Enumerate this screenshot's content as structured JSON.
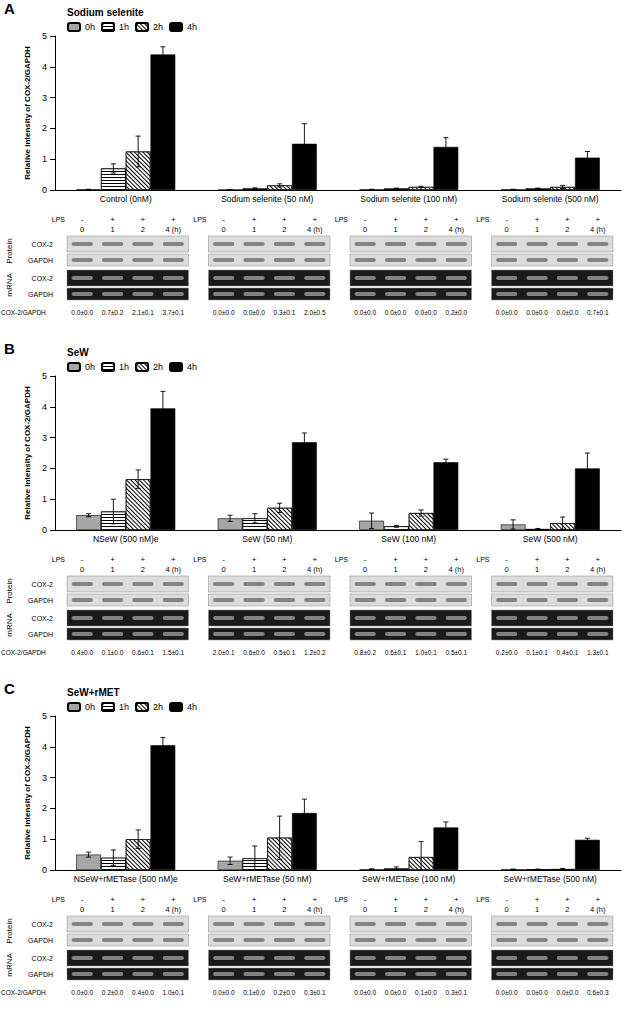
{
  "chart_data": [
    {
      "type": "bar",
      "title": "Sodium selenite",
      "annotations": [
        "A"
      ],
      "y_label": "Relative intensity of COX-2/GAPDH",
      "categories": [
        "Control (0nM)",
        "Sodium selenite (50 nM)",
        "Sodium selenite (100 nM)",
        "Sodium selenite (500 nM)"
      ],
      "series": [
        {
          "name": "0h",
          "color": "#a6a6a6",
          "values": [
            0.02,
            0.01,
            0.02,
            0.02
          ],
          "errors": [
            0,
            0,
            0,
            0
          ]
        },
        {
          "name": "1h",
          "color": "#ffffff",
          "values": [
            0.7,
            0.05,
            0.05,
            0.05
          ],
          "errors": [
            0.15,
            0.02,
            0.01,
            0.01
          ]
        },
        {
          "name": "2h",
          "color": "#ffffff",
          "values": [
            1.25,
            0.15,
            0.1,
            0.1
          ],
          "errors": [
            0.5,
            0.05,
            0.02,
            0.05
          ]
        },
        {
          "name": "4h",
          "color": "#000000",
          "values": [
            4.4,
            1.5,
            1.4,
            1.05
          ],
          "errors": [
            0.25,
            0.65,
            0.3,
            0.2
          ]
        }
      ],
      "ylim": [
        0,
        5
      ],
      "yticks": [
        0,
        1,
        2,
        3,
        4,
        5
      ],
      "grid": false,
      "legend": "top-left"
    },
    {
      "type": "bar",
      "title": "SeW",
      "annotations": [
        "B"
      ],
      "y_label": "Relative intensity of COX-2/GAPDH",
      "categories": [
        "NSeW (500 nM)e",
        "SeW (50 nM)",
        "SeW (100 nM)",
        "SeW (500 nM)"
      ],
      "series": [
        {
          "name": "0h",
          "color": "#a6a6a6",
          "values": [
            0.48,
            0.38,
            0.3,
            0.18
          ],
          "errors": [
            0.05,
            0.1,
            0.25,
            0.15
          ]
        },
        {
          "name": "1h",
          "color": "#ffffff",
          "values": [
            0.6,
            0.38,
            0.12,
            0.03
          ],
          "errors": [
            0.4,
            0.15,
            0.03,
            0.02
          ]
        },
        {
          "name": "2h",
          "color": "#ffffff",
          "values": [
            1.65,
            0.72,
            0.55,
            0.22
          ],
          "errors": [
            0.3,
            0.15,
            0.1,
            0.2
          ]
        },
        {
          "name": "4h",
          "color": "#000000",
          "values": [
            3.95,
            2.85,
            2.2,
            2.0
          ],
          "errors": [
            0.55,
            0.3,
            0.1,
            0.5
          ]
        }
      ],
      "ylim": [
        0,
        5
      ],
      "yticks": [
        0,
        1,
        2,
        3,
        4,
        5
      ],
      "grid": false,
      "legend": "top-left"
    },
    {
      "type": "bar",
      "title": "SeW+rMET",
      "annotations": [
        "C"
      ],
      "y_label": "Relative intensity of COX-2/GAPDH",
      "categories": [
        "NSeW+rMETase (500 nM)e",
        "SeW+rMETase (50 nM)",
        "SeW+rMETase (100 nM)",
        "SeW+rMETase (500 nM)"
      ],
      "series": [
        {
          "name": "0h",
          "color": "#a6a6a6",
          "values": [
            0.5,
            0.3,
            0.02,
            0.02
          ],
          "errors": [
            0.08,
            0.12,
            0.02,
            0.01
          ]
        },
        {
          "name": "1h",
          "color": "#ffffff",
          "values": [
            0.4,
            0.38,
            0.05,
            0.02
          ],
          "errors": [
            0.25,
            0.4,
            0.05,
            0.01
          ]
        },
        {
          "name": "2h",
          "color": "#ffffff",
          "values": [
            1.0,
            1.05,
            0.42,
            0.03
          ],
          "errors": [
            0.3,
            0.7,
            0.5,
            0.02
          ]
        },
        {
          "name": "4h",
          "color": "#000000",
          "values": [
            4.05,
            1.85,
            1.38,
            0.98
          ],
          "errors": [
            0.25,
            0.45,
            0.18,
            0.05
          ]
        }
      ],
      "ylim": [
        0,
        5
      ],
      "yticks": [
        0,
        1,
        2,
        3,
        4,
        5
      ],
      "grid": false,
      "legend": "top-left"
    }
  ],
  "blot_panels": [
    {
      "lps_label": "LPS",
      "lps": [
        "-",
        "+",
        "+",
        "+"
      ],
      "lanes": [
        "0",
        "1",
        "2",
        "4 (h)"
      ],
      "sections": [
        {
          "label": "Protein",
          "rows": [
            "COX-2",
            "GAPDH"
          ]
        },
        {
          "label": "mRNA",
          "rows": [
            "COX-2",
            "GAPDH"
          ]
        }
      ],
      "ratio_label": "COX-2/GAPDH",
      "ratios": [
        [
          "0.0±0.0",
          "0.7±0.2",
          "2.1±0.1",
          "3.7±0.1"
        ],
        [
          "0.0±0.0",
          "0.0±0.0",
          "0.3±0.1",
          "2.0±0.5"
        ],
        [
          "0.0±0.0",
          "0.0±0.0",
          "0.0±0.0",
          "0.2±0.0"
        ],
        [
          "0.0±0.0",
          "0.0±0.0",
          "0.0±0.0",
          "0.7±0.1"
        ]
      ]
    },
    {
      "lps_label": "LPS",
      "lps": [
        "-",
        "+",
        "+",
        "+"
      ],
      "lanes": [
        "0",
        "1",
        "2",
        "4 (h)"
      ],
      "sections": [
        {
          "label": "Protein",
          "rows": [
            "COX-2",
            "GAPDH"
          ]
        },
        {
          "label": "mRNA",
          "rows": [
            "COX-2",
            "GAPDH"
          ]
        }
      ],
      "ratio_label": "COX-2/GAPDH",
      "ratios": [
        [
          "0.4±0.0",
          "0.1±0.0",
          "0.6±0.1",
          "1.5±0.1"
        ],
        [
          "2.0±0.1",
          "0.6±0.0",
          "0.5±0.1",
          "1.2±0.2"
        ],
        [
          "0.8±0.2",
          "0.6±0.1",
          "1.0±0.1",
          "0.5±0.1"
        ],
        [
          "0.2±0.0",
          "0.1±0.1",
          "0.4±0.1",
          "1.3±0.1"
        ]
      ]
    },
    {
      "lps_label": "LPS",
      "lps": [
        "-",
        "+",
        "+",
        "+"
      ],
      "lanes": [
        "0",
        "1",
        "2",
        "4 (h)"
      ],
      "sections": [
        {
          "label": "Protein",
          "rows": [
            "COX-2",
            "GAPDH"
          ]
        },
        {
          "label": "mRNA",
          "rows": [
            "COX-2",
            "GAPDH"
          ]
        }
      ],
      "ratio_label": "COX-2/GAPDH",
      "ratios": [
        [
          "0.0±0.0",
          "0.2±0.0",
          "0.4±0.0",
          "1.0±0.1"
        ],
        [
          "0.0±0.0",
          "0.1±0.0",
          "0.2±0.0",
          "0.3±0.1"
        ],
        [
          "0.0±0.0",
          "0.0±0.0",
          "0.1±0.0",
          "0.3±0.1"
        ],
        [
          "0.0±0.0",
          "0.0±0.0",
          "0.0±0.0",
          "0.6±0.3"
        ]
      ]
    }
  ]
}
